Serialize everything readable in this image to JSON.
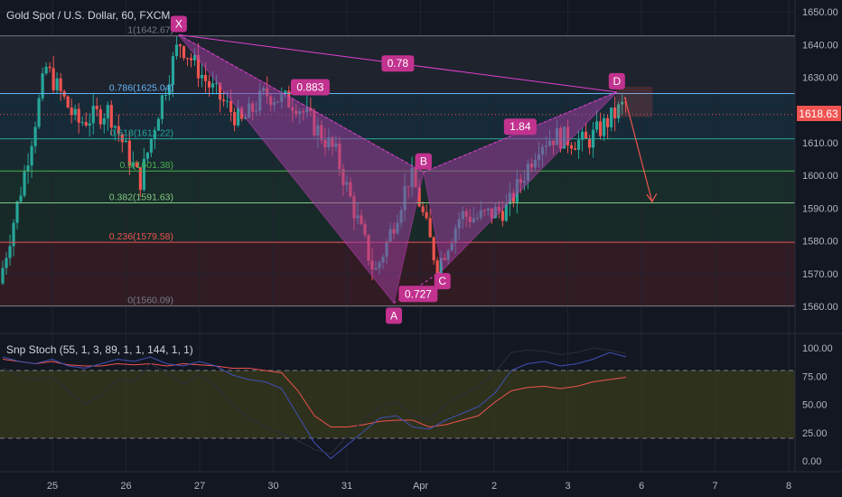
{
  "header": {
    "symbol": "Gold Spot / U.S. Dollar, 60, FXCM"
  },
  "indicator": {
    "name": "Snp Stoch (55, 1, 3, 89, 1, 1, 144, 1, 1)"
  },
  "price_badge": "1618.63",
  "colors": {
    "background": "#131722",
    "up": "#26a69a",
    "down": "#ef5350",
    "pattern_fill": "#9c3e9c",
    "pattern_line": "#e040d0",
    "label_bg": "#c2328f"
  },
  "chart_data": [
    {
      "type": "candlestick",
      "title": "Gold Spot / U.S. Dollar, 60, FXCM",
      "ylim": [
        1555,
        1655
      ],
      "y_ticks": [
        "1560.00",
        "1570.00",
        "1580.00",
        "1590.00",
        "1600.00",
        "1610.00",
        "1620.00",
        "1630.00",
        "1640.00",
        "1650.00"
      ],
      "x_ticks": [
        "25",
        "26",
        "27",
        "30",
        "31",
        "Apr",
        "2",
        "3",
        "6",
        "7",
        "8"
      ],
      "last_price": 1618.63,
      "anchors": [
        {
          "x": 0.0,
          "y": 1567
        },
        {
          "x": 0.3,
          "y": 1598
        },
        {
          "x": 0.6,
          "y": 1633
        },
        {
          "x": 1.0,
          "y": 1616
        },
        {
          "x": 1.4,
          "y": 1620
        },
        {
          "x": 1.8,
          "y": 1598
        },
        {
          "x": 2.05,
          "y": 1621
        },
        {
          "x": 2.3,
          "y": 1641
        },
        {
          "x": 2.7,
          "y": 1627
        },
        {
          "x": 3.1,
          "y": 1616
        },
        {
          "x": 3.4,
          "y": 1625
        },
        {
          "x": 3.8,
          "y": 1622
        },
        {
          "x": 4.3,
          "y": 1607
        },
        {
          "x": 4.8,
          "y": 1570
        },
        {
          "x": 4.95,
          "y": 1579
        },
        {
          "x": 5.25,
          "y": 1600
        },
        {
          "x": 5.3,
          "y": 1598
        },
        {
          "x": 5.6,
          "y": 1572
        },
        {
          "x": 5.9,
          "y": 1588
        },
        {
          "x": 6.1,
          "y": 1587
        },
        {
          "x": 6.5,
          "y": 1590
        },
        {
          "x": 6.9,
          "y": 1610
        },
        {
          "x": 7.1,
          "y": 1612
        },
        {
          "x": 7.5,
          "y": 1610
        },
        {
          "x": 7.8,
          "y": 1617
        },
        {
          "x": 8.0,
          "y": 1622
        }
      ],
      "fib_levels": [
        {
          "ratio": "1",
          "price": 1642.67,
          "label": "1(1642.67)",
          "color": "#787b86"
        },
        {
          "ratio": "0.786",
          "price": 1625.04,
          "label": "0.786(1625.04)",
          "color": "#64b5f6"
        },
        {
          "ratio": "0.618",
          "price": 1611.22,
          "label": "0.618(1611.22)",
          "color": "#26a69a"
        },
        {
          "ratio": "0.5",
          "price": 1601.38,
          "label": "0.5(1601.38)",
          "color": "#4caf50"
        },
        {
          "ratio": "0.382",
          "price": 1591.63,
          "label": "0.382(1591.63)",
          "color": "#81c784"
        },
        {
          "ratio": "0.236",
          "price": 1579.58,
          "label": "0.236(1579.58)",
          "color": "#ef5350"
        },
        {
          "ratio": "0",
          "price": 1560.09,
          "label": "0(1560.09)",
          "color": "#787b86"
        }
      ],
      "pattern_points": [
        {
          "name": "X",
          "x": 2.25,
          "y": 1643
        },
        {
          "name": "A",
          "x": 5.0,
          "y": 1561
        },
        {
          "name": "B",
          "x": 5.38,
          "y": 1601
        },
        {
          "name": "C",
          "x": 5.62,
          "y": 1571
        },
        {
          "name": "D",
          "x": 7.85,
          "y": 1625.5
        }
      ],
      "pattern_ratios": [
        "0.78",
        "0.883",
        "0.727",
        "1.84"
      ],
      "target_box": {
        "x0": 7.85,
        "x1": 8.3,
        "y0": 1618,
        "y1": 1627
      },
      "projection": [
        {
          "x": 7.95,
          "y": 1624
        },
        {
          "x": 8.3,
          "y": 1592
        }
      ]
    },
    {
      "type": "line",
      "title": "Snp Stoch (55, 1, 3, 89, 1, 1, 144, 1, 1)",
      "ylim": [
        -5,
        105
      ],
      "y_ticks": [
        "0.00",
        "25.00",
        "50.00",
        "75.00",
        "100.00"
      ],
      "bands": [
        80,
        20
      ],
      "series": [
        {
          "color": "#ef5350",
          "values": [
            90,
            88,
            86,
            88,
            85,
            84,
            84,
            86,
            85,
            86,
            84,
            86,
            85,
            84,
            82,
            82,
            80,
            78,
            62,
            40,
            30,
            30,
            32,
            35,
            36,
            36,
            30,
            32,
            36,
            40,
            52,
            62,
            65,
            66,
            64,
            66,
            70,
            72,
            74
          ]
        },
        {
          "color": "#3f51b5",
          "values": [
            92,
            88,
            86,
            90,
            84,
            82,
            86,
            90,
            88,
            92,
            86,
            84,
            88,
            84,
            76,
            72,
            70,
            64,
            40,
            16,
            2,
            14,
            26,
            38,
            40,
            30,
            28,
            36,
            42,
            48,
            60,
            80,
            86,
            88,
            84,
            86,
            90,
            96,
            92
          ]
        },
        {
          "color": "#2a2e39",
          "values": [
            82,
            76,
            72,
            74,
            62,
            50,
            58,
            72,
            70,
            86,
            78,
            68,
            76,
            66,
            50,
            38,
            30,
            24,
            18,
            10,
            6,
            22,
            36,
            48,
            52,
            40,
            36,
            50,
            58,
            66,
            78,
            96,
            98,
            97,
            94,
            96,
            100,
            98,
            95
          ]
        }
      ]
    }
  ]
}
